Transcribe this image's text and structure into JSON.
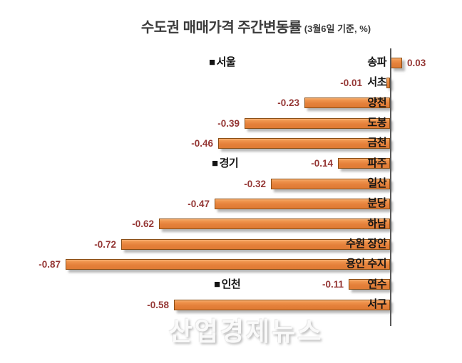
{
  "title": {
    "main": "수도권 매매가격 주간변동률",
    "suffix": "(3월6일 기준, %)"
  },
  "watermark": "산업경제뉴스",
  "region_marker_glyph": "■",
  "colors": {
    "bar_fill": "#e5813b",
    "bar_fill_light": "#f6b277",
    "bar_border": "#8a4e16",
    "value_label": "#953735",
    "axis": "#595959",
    "title_text": "#3b3b3b"
  },
  "chart_data": {
    "type": "bar",
    "orientation": "horizontal",
    "unit": "%",
    "title": "수도권 매매가격 주간변동률 (3월6일 기준, %)",
    "value_range": [
      -0.87,
      0.03
    ],
    "grid": false,
    "legend": false,
    "regions": [
      {
        "name": "서울",
        "districts": [
          {
            "label": "송파",
            "value": 0.03
          },
          {
            "label": "서초",
            "value": -0.01
          },
          {
            "label": "양천",
            "value": -0.23
          },
          {
            "label": "도봉",
            "value": -0.39
          },
          {
            "label": "금천",
            "value": -0.46
          }
        ]
      },
      {
        "name": "경기",
        "districts": [
          {
            "label": "파주",
            "value": -0.14
          },
          {
            "label": "일산",
            "value": -0.32
          },
          {
            "label": "분당",
            "value": -0.47
          },
          {
            "label": "하남",
            "value": -0.62
          },
          {
            "label": "수원 장안",
            "value": -0.72
          },
          {
            "label": "용인 수지",
            "value": -0.87
          }
        ]
      },
      {
        "name": "인천",
        "districts": [
          {
            "label": "연수",
            "value": -0.11
          },
          {
            "label": "서구",
            "value": -0.58
          }
        ]
      }
    ]
  }
}
